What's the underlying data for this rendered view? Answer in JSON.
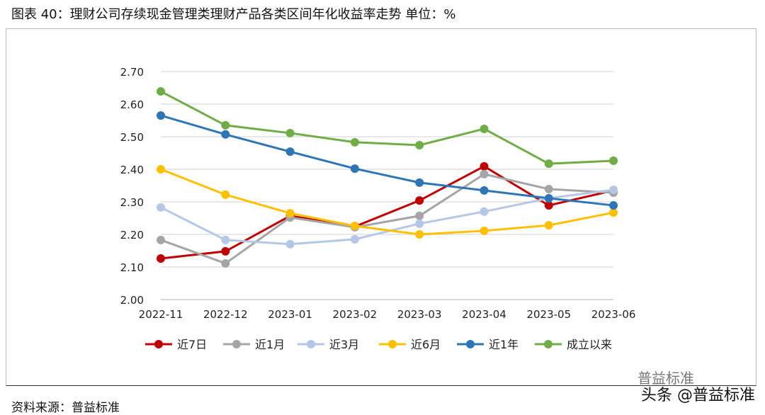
{
  "title": "图表 40：理财公司存续现金管理类理财产品各类区间年化收益率走势   单位：%",
  "source": "资料来源：普益标准",
  "watermark": "头条 @普益标准",
  "watermark_small": "普益标准",
  "chart_data": {
    "type": "line",
    "title": "",
    "xlabel": "",
    "ylabel": "",
    "categories": [
      "2022-11",
      "2022-12",
      "2023-01",
      "2023-02",
      "2023-03",
      "2023-04",
      "2023-05",
      "2023-06"
    ],
    "ylim": [
      2.0,
      2.7
    ],
    "yticks": [
      "2.00",
      "2.10",
      "2.20",
      "2.30",
      "2.40",
      "2.50",
      "2.60",
      "2.70"
    ],
    "grid": true,
    "legend": "bottom",
    "series": [
      {
        "name": "近7日",
        "color": "#C00000",
        "values": [
          2.126,
          2.148,
          2.257,
          2.224,
          2.304,
          2.409,
          2.289,
          2.335
        ]
      },
      {
        "name": "近1月",
        "color": "#A5A5A5",
        "values": [
          2.183,
          2.111,
          2.252,
          2.222,
          2.257,
          2.385,
          2.339,
          2.328
        ]
      },
      {
        "name": "近3月",
        "color": "#B4C7E7",
        "values": [
          2.283,
          2.183,
          2.17,
          2.185,
          2.233,
          2.27,
          2.311,
          2.337
        ]
      },
      {
        "name": "近6月",
        "color": "#FFC000",
        "values": [
          2.4,
          2.322,
          2.265,
          2.226,
          2.2,
          2.211,
          2.228,
          2.267
        ]
      },
      {
        "name": "近1年",
        "color": "#2E75B6",
        "values": [
          2.565,
          2.507,
          2.454,
          2.402,
          2.359,
          2.335,
          2.311,
          2.289
        ]
      },
      {
        "name": "成立以来",
        "color": "#70AD47",
        "values": [
          2.639,
          2.535,
          2.511,
          2.483,
          2.474,
          2.524,
          2.417,
          2.426
        ]
      }
    ]
  }
}
